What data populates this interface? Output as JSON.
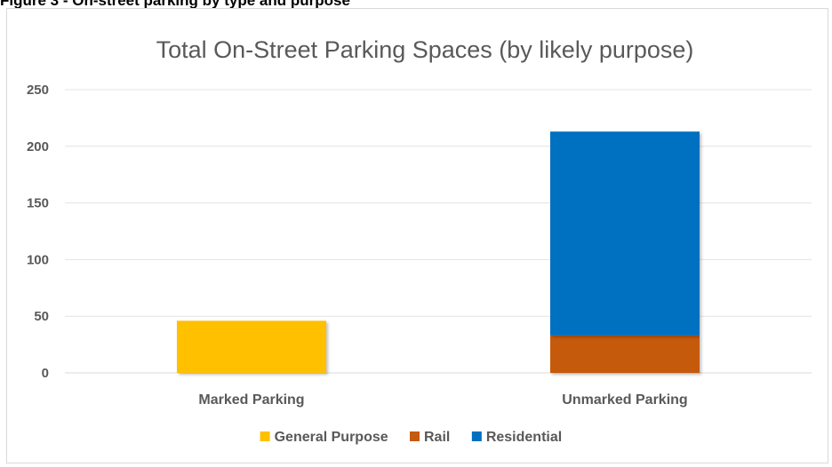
{
  "caption": "Figure 3 - On-street parking by type and purpose",
  "chart_data": {
    "type": "bar",
    "stacked": true,
    "title": "Total On-Street Parking Spaces (by likely purpose)",
    "xlabel": "",
    "ylabel": "",
    "categories": [
      "Marked Parking",
      "Unmarked Parking"
    ],
    "series": [
      {
        "name": "General Purpose",
        "values": [
          46,
          0
        ],
        "color": "#FFC000"
      },
      {
        "name": "Rail",
        "values": [
          0,
          33
        ],
        "color": "#C55A11"
      },
      {
        "name": "Residential",
        "values": [
          0,
          180
        ],
        "color": "#0070C0"
      }
    ],
    "ylim": [
      0,
      250
    ],
    "yticks": [
      0,
      50,
      100,
      150,
      200,
      250
    ],
    "grid": true,
    "legend_position": "bottom"
  }
}
